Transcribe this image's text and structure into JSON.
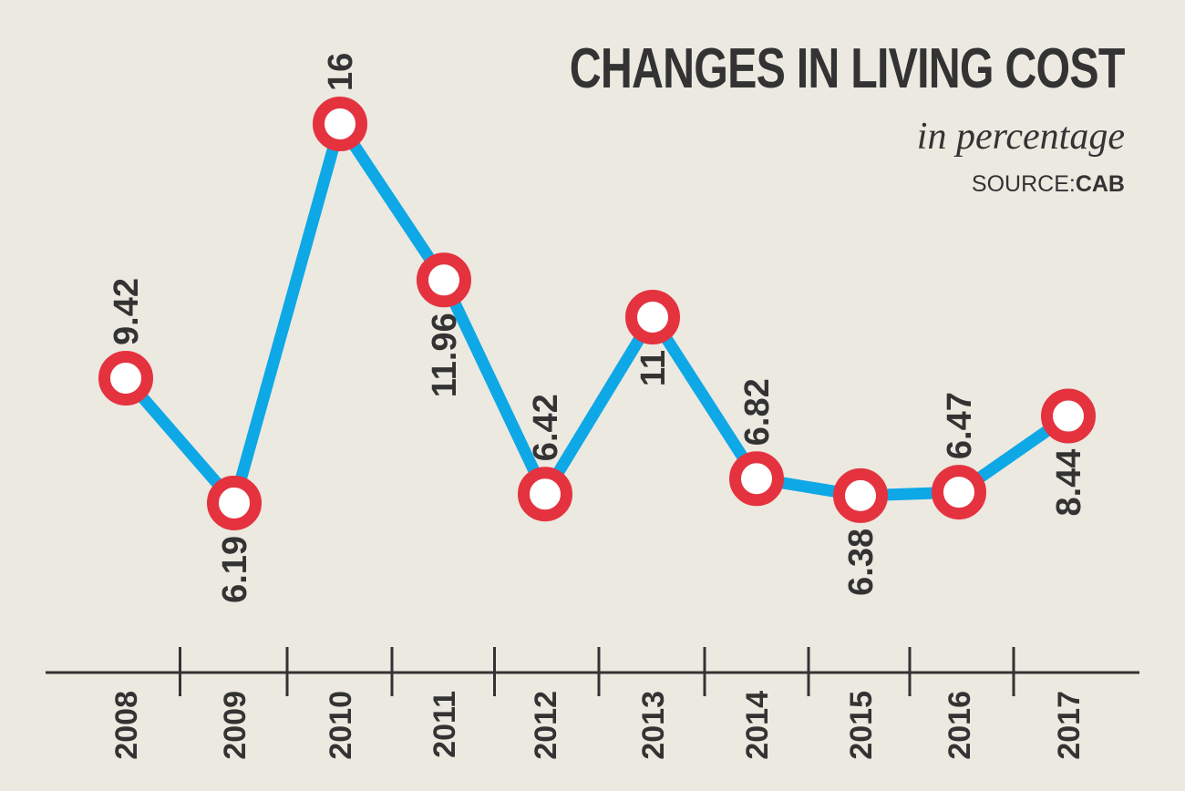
{
  "title": "CHANGES IN LIVING COST",
  "subtitle": "in percentage",
  "source": {
    "label": "SOURCE:",
    "name": "CAB"
  },
  "colors": {
    "background": "#ebe9e0",
    "line": "#0ea8e6",
    "marker": "#e5323f",
    "marker_center": "#ffffff",
    "text": "#333333",
    "axis": "#333333"
  },
  "chart_data": {
    "type": "line",
    "title": "CHANGES IN LIVING COST",
    "subtitle": "in percentage",
    "xlabel": "",
    "ylabel": "",
    "categories": [
      "2008",
      "2009",
      "2010",
      "2011",
      "2012",
      "2013",
      "2014",
      "2015",
      "2016",
      "2017"
    ],
    "series": [
      {
        "values": [
          9.42,
          6.19,
          16,
          11.96,
          6.42,
          11,
          6.82,
          6.38,
          6.47,
          8.44
        ],
        "labels": [
          "9.42",
          "6.19",
          "16",
          "11.96",
          "6.42",
          "11",
          "6.82",
          "6.38",
          "6.47",
          "8.44"
        ],
        "label_positions": [
          "above",
          "below",
          "above",
          "below",
          "above",
          "below",
          "above",
          "below",
          "above",
          "below"
        ]
      }
    ],
    "grid": false,
    "legend": "none"
  }
}
